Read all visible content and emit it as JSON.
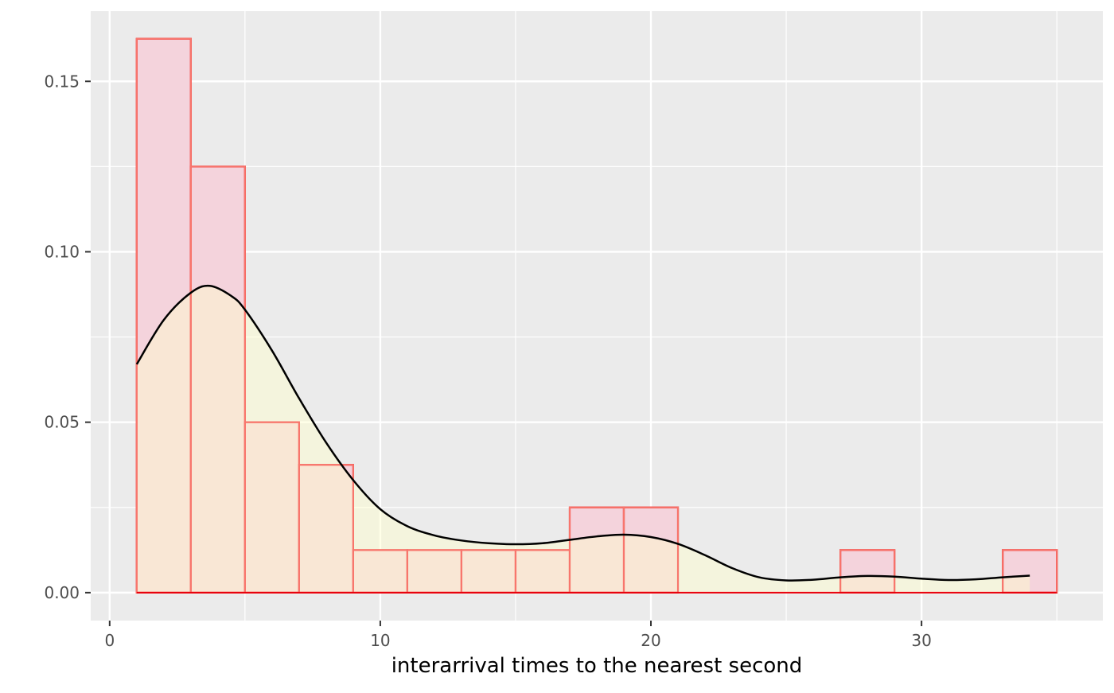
{
  "chart_data": {
    "type": "bar",
    "title": "",
    "xlabel": "interarrival times to the nearest second",
    "ylabel": "",
    "xlim": [
      -0.7,
      36.7
    ],
    "ylim": [
      -0.0082,
      0.1706
    ],
    "grid": true,
    "x_ticks": [
      0,
      10,
      20,
      30
    ],
    "x_tick_labels": [
      "0",
      "10",
      "20",
      "30"
    ],
    "y_ticks": [
      0.0,
      0.05,
      0.1,
      0.15
    ],
    "y_tick_labels": [
      "0.00",
      "0.05",
      "0.10",
      "0.15"
    ],
    "histogram": {
      "bin_edges": [
        1,
        3,
        5,
        7,
        9,
        11,
        13,
        15,
        17,
        19,
        21,
        23,
        25,
        27,
        29,
        31,
        33,
        35
      ],
      "values": [
        0.1625,
        0.125,
        0.05,
        0.0375,
        0.0125,
        0.0125,
        0.0125,
        0.0125,
        0.025,
        0.025,
        0,
        0,
        0,
        0.0125,
        0,
        0,
        0.0125
      ]
    },
    "density": {
      "x": [
        1,
        2,
        3,
        3.7,
        4.5,
        5,
        6,
        7,
        8,
        9,
        10,
        11,
        12,
        13,
        14,
        15,
        16,
        17,
        18,
        19,
        20,
        21,
        22,
        23,
        24,
        25,
        26,
        27,
        28,
        29,
        30,
        31,
        32,
        33,
        34
      ],
      "y": [
        0.067,
        0.08,
        0.088,
        0.09,
        0.087,
        0.083,
        0.071,
        0.057,
        0.044,
        0.033,
        0.0245,
        0.0195,
        0.0168,
        0.0153,
        0.0145,
        0.0142,
        0.0145,
        0.0155,
        0.0165,
        0.017,
        0.0163,
        0.0143,
        0.011,
        0.0072,
        0.0045,
        0.0036,
        0.0038,
        0.0045,
        0.0049,
        0.0047,
        0.0041,
        0.0037,
        0.0039,
        0.0045,
        0.005
      ]
    },
    "colors": {
      "panel_background": "#EBEBEB",
      "grid_major": "#FFFFFF",
      "bar_outline": "#E8000B",
      "bar_fill": "#F4D3DC",
      "density_line": "#000000",
      "density_fill": "#FFFFCC",
      "density_fill_opacity": 0.45,
      "overlay_outline": "#F8766D"
    }
  }
}
